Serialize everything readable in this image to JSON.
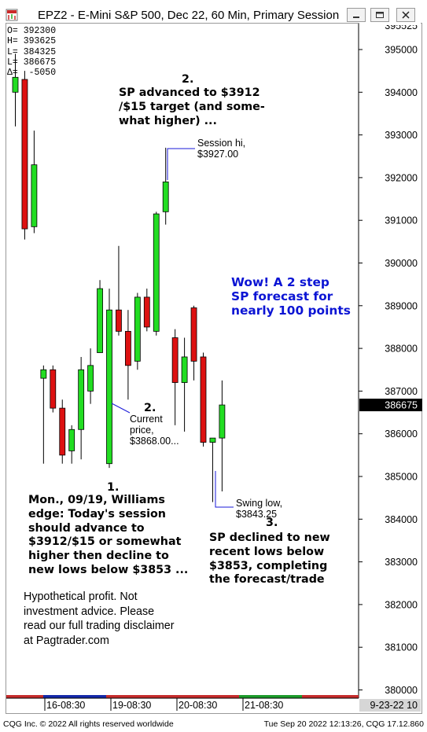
{
  "window": {
    "title": "EPZ2 - E-Mini S&P 500, Dec 22, 60 Min, Primary Session",
    "buttons": [
      "minimize",
      "restore",
      "close"
    ]
  },
  "ohlc_panel": {
    "open": "O= 392300",
    "high": "H= 393625",
    "low": "L= 384325",
    "last": "L= 386675",
    "delta": "Δ=  -5050"
  },
  "annotations": {
    "label_2_top": "2.",
    "sp_advanced": "SP advanced to $3912\n/$15 target (and some-\nwhat higher) ...",
    "session_hi": "Session hi,\n$3927.00",
    "wow": "Wow! A 2 step\nSP forecast for\nnearly 100 points",
    "label_2_mid": "2.",
    "current_price": "Current\nprice,\n$3868.00...",
    "label_1": "1.",
    "monday": "Mon., 09/19, Williams\nedge: Today's session\nshould advance to\n$3912/$15 or somewhat\nhigher then decline to\nnew lows below $3853 ...",
    "swing_low": "Swing low,\n$3843.25",
    "label_3": "3.",
    "sp_declined": "SP declined to new\nrecent lows below\n$3853, completing\nthe forecast/trade",
    "disclaimer": "Hypothetical profit. Not\ninvestment advice. Please\nread our full trading disclaimer\nat Pagtrader.com"
  },
  "footer": {
    "left": "CQG Inc. © 2022 All rights reserved worldwide",
    "right": "Tue Sep 20 2022 12:13:26, CQG 17.12.860"
  },
  "colors": {
    "up": "#22dd22",
    "down": "#dd1111",
    "price_box": "#000000",
    "annot_line": "#1a1ad8",
    "blue_text": "#0b14d4"
  },
  "chart_data": {
    "type": "candlestick",
    "y_tick_labels": [
      "380000",
      "381000",
      "382000",
      "383000",
      "384000",
      "385000",
      "386000",
      "387000",
      "388000",
      "389000",
      "390000",
      "391000",
      "392000",
      "393000",
      "394000",
      "395000"
    ],
    "ylim": [
      379800,
      395600
    ],
    "top_partial_label": "395525",
    "last_price_label": "386675",
    "x_tick_labels": [
      "16-08:30",
      "19-08:30",
      "20-08:30",
      "21-08:30",
      "9-23-22 10"
    ],
    "candles": [
      {
        "o": 394000,
        "h": 394900,
        "l": 393200,
        "c": 394350
      },
      {
        "o": 394300,
        "h": 394500,
        "l": 390550,
        "c": 390800
      },
      {
        "o": 390850,
        "h": 393100,
        "l": 390700,
        "c": 392300
      },
      {
        "o": 387300,
        "h": 387600,
        "l": 385300,
        "c": 387500
      },
      {
        "o": 387500,
        "h": 387600,
        "l": 386500,
        "c": 386600
      },
      {
        "o": 386600,
        "h": 386800,
        "l": 385300,
        "c": 385500
      },
      {
        "o": 385600,
        "h": 386200,
        "l": 385300,
        "c": 386100
      },
      {
        "o": 386100,
        "h": 387800,
        "l": 385400,
        "c": 387500
      },
      {
        "o": 387000,
        "h": 388000,
        "l": 386700,
        "c": 387600
      },
      {
        "o": 387900,
        "h": 389600,
        "l": 387900,
        "c": 389400
      },
      {
        "o": 385300,
        "h": 389400,
        "l": 385200,
        "c": 388900
      },
      {
        "o": 388900,
        "h": 390400,
        "l": 388300,
        "c": 388400
      },
      {
        "o": 388400,
        "h": 388900,
        "l": 386800,
        "c": 387600
      },
      {
        "o": 387700,
        "h": 389300,
        "l": 387500,
        "c": 389200
      },
      {
        "o": 389200,
        "h": 389400,
        "l": 388400,
        "c": 388500
      },
      {
        "o": 388400,
        "h": 391200,
        "l": 388300,
        "c": 391150
      },
      {
        "o": 391200,
        "h": 392700,
        "l": 390900,
        "c": 391900
      },
      {
        "o": 388250,
        "h": 388450,
        "l": 386200,
        "c": 387200
      },
      {
        "o": 387200,
        "h": 388250,
        "l": 386050,
        "c": 387800
      },
      {
        "o": 388950,
        "h": 389000,
        "l": 387250,
        "c": 387700
      },
      {
        "o": 387800,
        "h": 387900,
        "l": 385700,
        "c": 385800
      },
      {
        "o": 385800,
        "h": 385900,
        "l": 384400,
        "c": 385900
      },
      {
        "o": 385900,
        "h": 387250,
        "l": 384650,
        "c": 386675
      }
    ]
  }
}
